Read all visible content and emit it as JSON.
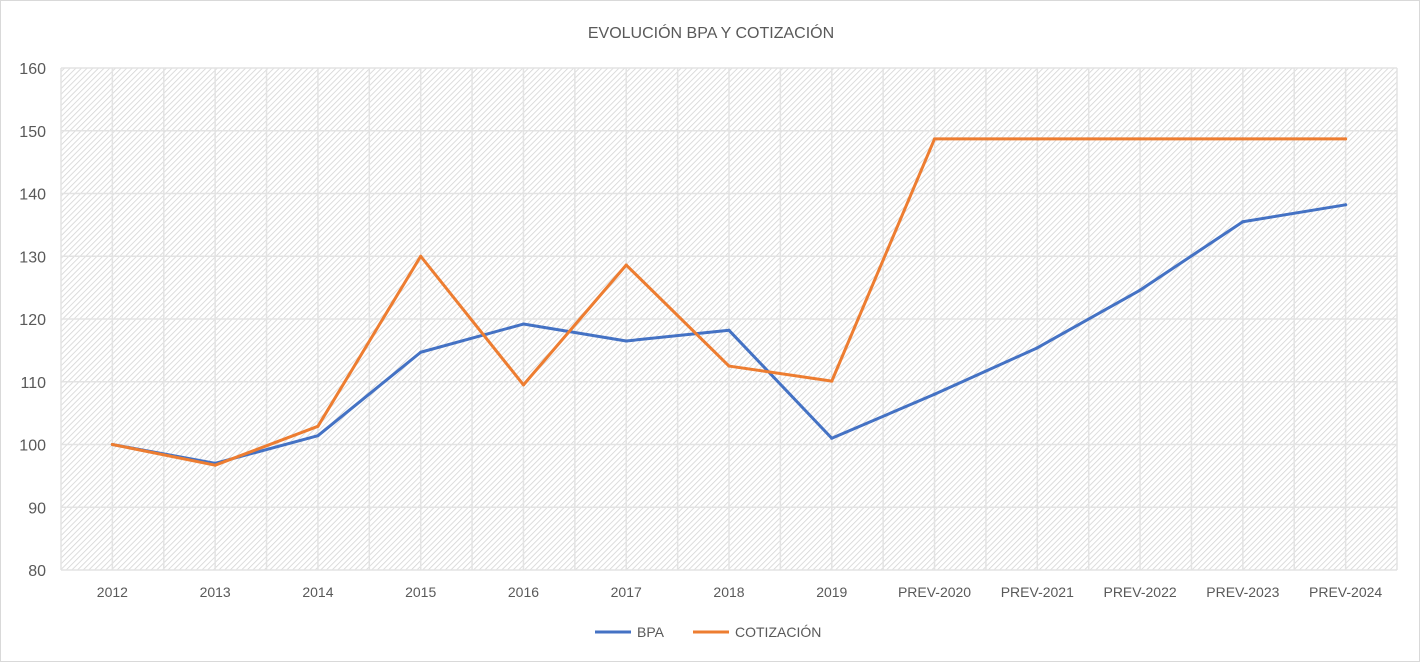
{
  "chart_data": {
    "type": "line",
    "title": "EVOLUCIÓN BPA Y COTIZACIÓN",
    "xlabel": "",
    "ylabel": "",
    "ylim": [
      80,
      160
    ],
    "yticks": [
      80,
      90,
      100,
      110,
      120,
      130,
      140,
      150,
      160
    ],
    "grid": true,
    "legend_position": "bottom",
    "categories": [
      "2012",
      "2013",
      "2014",
      "2015",
      "2016",
      "2017",
      "2018",
      "2019",
      "PREV-2020",
      "PREV-2021",
      "PREV-2022",
      "PREV-2023",
      "PREV-2024"
    ],
    "series": [
      {
        "name": "BPA",
        "color": "#4472c4",
        "values": [
          100,
          97,
          101.4,
          114.7,
          119.2,
          116.5,
          118.2,
          101,
          108,
          115.4,
          124.6,
          135.5,
          138.2
        ]
      },
      {
        "name": "COTIZACIÓN",
        "color": "#ed7d31",
        "values": [
          100,
          96.7,
          102.9,
          130,
          109.5,
          128.6,
          112.5,
          110.1,
          148.7,
          148.7,
          148.7,
          148.7,
          148.7
        ]
      }
    ]
  }
}
